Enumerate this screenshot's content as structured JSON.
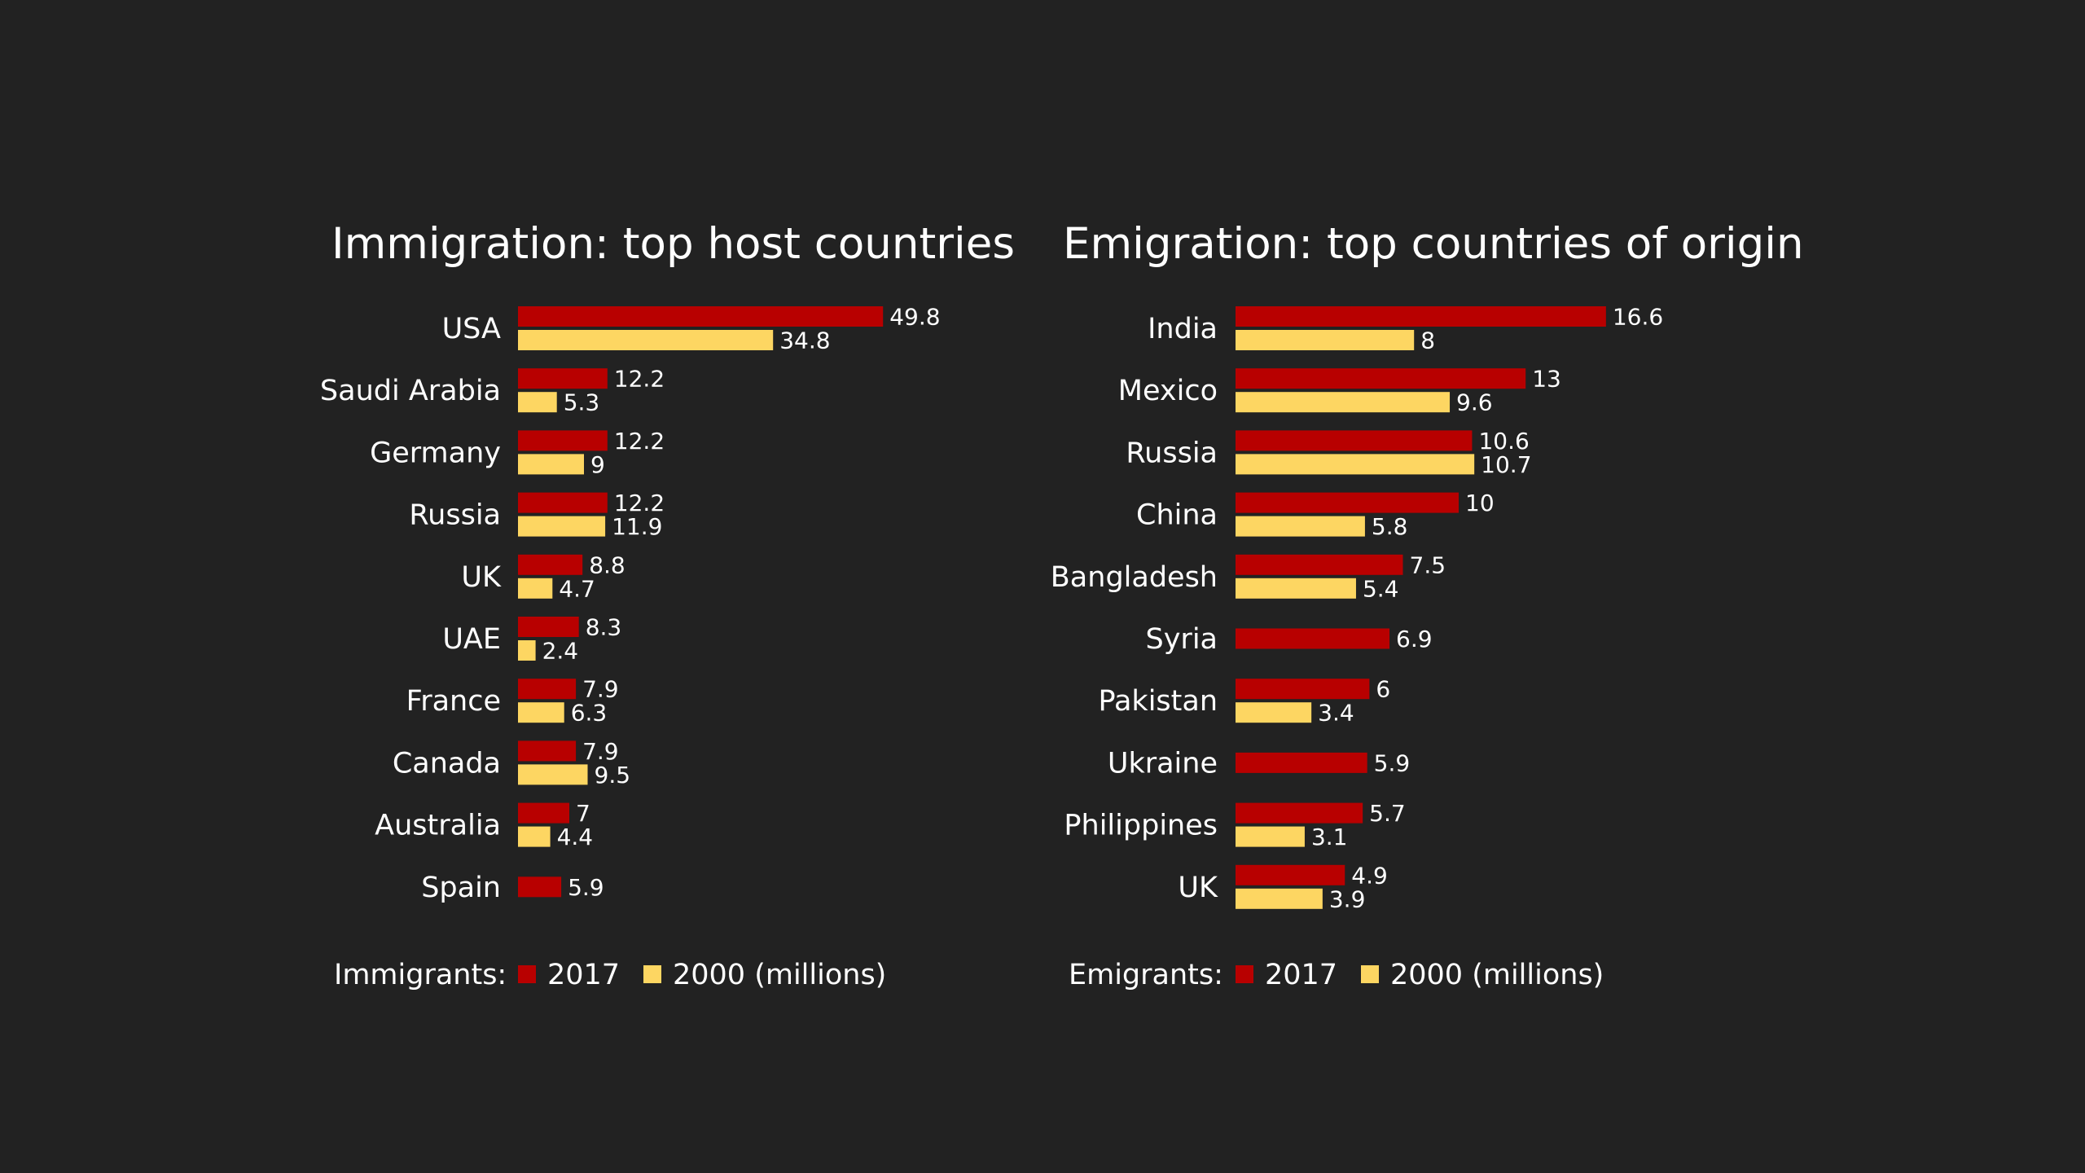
{
  "chart_data": [
    {
      "type": "bar",
      "orientation": "horizontal",
      "title": "Immigration: top host countries",
      "categories": [
        "USA",
        "Saudi Arabia",
        "Germany",
        "Russia",
        "UK",
        "UAE",
        "France",
        "Canada",
        "Australia",
        "Spain"
      ],
      "series": [
        {
          "name": "2017",
          "color": "#b80000",
          "values": [
            49.8,
            12.2,
            12.2,
            12.2,
            8.8,
            8.3,
            7.9,
            7.9,
            7,
            5.9
          ]
        },
        {
          "name": "2000 (millions)",
          "color": "#fdd662",
          "values": [
            34.8,
            5.3,
            9,
            11.9,
            4.7,
            2.4,
            6.3,
            9.5,
            4.4,
            null
          ]
        }
      ],
      "legend_label": "Immigrants:",
      "xlim": [
        0,
        50
      ],
      "grid": false
    },
    {
      "type": "bar",
      "orientation": "horizontal",
      "title": "Emigration: top countries of origin",
      "categories": [
        "India",
        "Mexico",
        "Russia",
        "China",
        "Bangladesh",
        "Syria",
        "Pakistan",
        "Ukraine",
        "Philippines",
        "UK"
      ],
      "series": [
        {
          "name": "2017",
          "color": "#b80000",
          "values": [
            16.6,
            13,
            10.6,
            10,
            7.5,
            6.9,
            6,
            5.9,
            5.7,
            4.9
          ]
        },
        {
          "name": "2000 (millions)",
          "color": "#fdd662",
          "values": [
            8,
            9.6,
            10.7,
            5.8,
            5.4,
            null,
            3.4,
            null,
            3.1,
            3.9
          ]
        }
      ],
      "legend_label": "Emigrants:",
      "xlim": [
        0,
        17
      ],
      "grid": false
    }
  ]
}
